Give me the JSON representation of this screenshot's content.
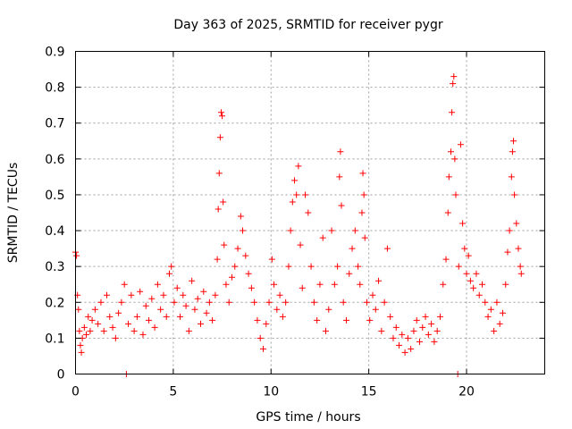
{
  "chart_data": {
    "type": "scatter",
    "title": "Day 363 of 2025, SRMTID for receiver pygr",
    "xlabel": "GPS time / hours",
    "ylabel": "SRMTID / TECUs",
    "xlim": [
      0,
      24
    ],
    "ylim": [
      0,
      0.9
    ],
    "xticks": [
      0,
      5,
      10,
      15,
      20
    ],
    "xtick_labels": [
      "0",
      "5",
      "10",
      "15",
      "20"
    ],
    "yticks": [
      0,
      0.1,
      0.2,
      0.3,
      0.4,
      0.5,
      0.6,
      0.7,
      0.8,
      0.9
    ],
    "ytick_labels": [
      "0",
      "0.1",
      "0.2",
      "0.3",
      "0.4",
      "0.5",
      "0.6",
      "0.7",
      "0.8",
      "0.9"
    ],
    "grid": true,
    "marker": "+",
    "colors": {
      "series": "#ff0000",
      "grid": "#a0a0a0",
      "axis": "#000000"
    },
    "series": [
      {
        "name": "SRMTID",
        "points": [
          [
            0.0,
            0.34
          ],
          [
            0.05,
            0.33
          ],
          [
            0.1,
            0.22
          ],
          [
            0.15,
            0.18
          ],
          [
            0.2,
            0.12
          ],
          [
            0.25,
            0.08
          ],
          [
            0.3,
            0.06
          ],
          [
            0.35,
            0.1
          ],
          [
            0.45,
            0.13
          ],
          [
            0.55,
            0.11
          ],
          [
            0.65,
            0.16
          ],
          [
            0.75,
            0.12
          ],
          [
            0.85,
            0.15
          ],
          [
            1.0,
            0.18
          ],
          [
            1.15,
            0.14
          ],
          [
            1.3,
            0.2
          ],
          [
            1.45,
            0.12
          ],
          [
            1.6,
            0.22
          ],
          [
            1.75,
            0.16
          ],
          [
            1.9,
            0.13
          ],
          [
            2.05,
            0.1
          ],
          [
            2.2,
            0.17
          ],
          [
            2.35,
            0.2
          ],
          [
            2.5,
            0.25
          ],
          [
            2.6,
            0.0
          ],
          [
            2.7,
            0.14
          ],
          [
            2.85,
            0.22
          ],
          [
            3.0,
            0.12
          ],
          [
            3.15,
            0.16
          ],
          [
            3.3,
            0.23
          ],
          [
            3.45,
            0.11
          ],
          [
            3.6,
            0.19
          ],
          [
            3.75,
            0.15
          ],
          [
            3.9,
            0.21
          ],
          [
            4.05,
            0.13
          ],
          [
            4.2,
            0.25
          ],
          [
            4.35,
            0.18
          ],
          [
            4.5,
            0.22
          ],
          [
            4.65,
            0.16
          ],
          [
            4.8,
            0.28
          ],
          [
            4.9,
            0.3
          ],
          [
            5.05,
            0.2
          ],
          [
            5.2,
            0.24
          ],
          [
            5.35,
            0.16
          ],
          [
            5.5,
            0.22
          ],
          [
            5.65,
            0.19
          ],
          [
            5.8,
            0.12
          ],
          [
            5.95,
            0.26
          ],
          [
            6.1,
            0.18
          ],
          [
            6.25,
            0.21
          ],
          [
            6.4,
            0.14
          ],
          [
            6.55,
            0.23
          ],
          [
            6.7,
            0.17
          ],
          [
            6.85,
            0.2
          ],
          [
            7.0,
            0.15
          ],
          [
            7.15,
            0.22
          ],
          [
            7.25,
            0.32
          ],
          [
            7.3,
            0.46
          ],
          [
            7.35,
            0.56
          ],
          [
            7.4,
            0.66
          ],
          [
            7.45,
            0.73
          ],
          [
            7.5,
            0.72
          ],
          [
            7.55,
            0.48
          ],
          [
            7.6,
            0.36
          ],
          [
            7.7,
            0.25
          ],
          [
            7.85,
            0.2
          ],
          [
            8.0,
            0.27
          ],
          [
            8.15,
            0.3
          ],
          [
            8.3,
            0.35
          ],
          [
            8.45,
            0.44
          ],
          [
            8.55,
            0.4
          ],
          [
            8.7,
            0.33
          ],
          [
            8.85,
            0.28
          ],
          [
            9.0,
            0.24
          ],
          [
            9.15,
            0.2
          ],
          [
            9.3,
            0.15
          ],
          [
            9.45,
            0.1
          ],
          [
            9.6,
            0.07
          ],
          [
            9.75,
            0.14
          ],
          [
            9.9,
            0.2
          ],
          [
            10.05,
            0.32
          ],
          [
            10.15,
            0.25
          ],
          [
            10.3,
            0.18
          ],
          [
            10.45,
            0.22
          ],
          [
            10.6,
            0.16
          ],
          [
            10.75,
            0.2
          ],
          [
            10.9,
            0.3
          ],
          [
            11.0,
            0.4
          ],
          [
            11.1,
            0.48
          ],
          [
            11.2,
            0.54
          ],
          [
            11.3,
            0.5
          ],
          [
            11.4,
            0.58
          ],
          [
            11.5,
            0.36
          ],
          [
            11.6,
            0.24
          ],
          [
            11.75,
            0.5
          ],
          [
            11.9,
            0.45
          ],
          [
            12.05,
            0.3
          ],
          [
            12.2,
            0.2
          ],
          [
            12.35,
            0.15
          ],
          [
            12.5,
            0.25
          ],
          [
            12.65,
            0.38
          ],
          [
            12.8,
            0.12
          ],
          [
            12.95,
            0.18
          ],
          [
            13.1,
            0.4
          ],
          [
            13.25,
            0.25
          ],
          [
            13.4,
            0.3
          ],
          [
            13.5,
            0.55
          ],
          [
            13.55,
            0.62
          ],
          [
            13.6,
            0.47
          ],
          [
            13.7,
            0.2
          ],
          [
            13.85,
            0.15
          ],
          [
            14.0,
            0.28
          ],
          [
            14.15,
            0.35
          ],
          [
            14.3,
            0.4
          ],
          [
            14.45,
            0.3
          ],
          [
            14.55,
            0.25
          ],
          [
            14.65,
            0.45
          ],
          [
            14.7,
            0.56
          ],
          [
            14.75,
            0.5
          ],
          [
            14.8,
            0.38
          ],
          [
            14.9,
            0.2
          ],
          [
            15.05,
            0.15
          ],
          [
            15.2,
            0.22
          ],
          [
            15.35,
            0.18
          ],
          [
            15.5,
            0.26
          ],
          [
            15.65,
            0.12
          ],
          [
            15.8,
            0.2
          ],
          [
            15.95,
            0.35
          ],
          [
            16.1,
            0.16
          ],
          [
            16.25,
            0.1
          ],
          [
            16.4,
            0.13
          ],
          [
            16.55,
            0.08
          ],
          [
            16.7,
            0.11
          ],
          [
            16.85,
            0.06
          ],
          [
            17.0,
            0.1
          ],
          [
            17.15,
            0.07
          ],
          [
            17.3,
            0.12
          ],
          [
            17.45,
            0.15
          ],
          [
            17.6,
            0.09
          ],
          [
            17.75,
            0.13
          ],
          [
            17.9,
            0.16
          ],
          [
            18.05,
            0.11
          ],
          [
            18.2,
            0.14
          ],
          [
            18.35,
            0.09
          ],
          [
            18.5,
            0.12
          ],
          [
            18.65,
            0.16
          ],
          [
            18.8,
            0.25
          ],
          [
            18.95,
            0.32
          ],
          [
            19.05,
            0.45
          ],
          [
            19.1,
            0.55
          ],
          [
            19.2,
            0.62
          ],
          [
            19.25,
            0.73
          ],
          [
            19.3,
            0.81
          ],
          [
            19.35,
            0.83
          ],
          [
            19.4,
            0.6
          ],
          [
            19.45,
            0.5
          ],
          [
            19.55,
            0.0
          ],
          [
            19.6,
            0.3
          ],
          [
            19.7,
            0.64
          ],
          [
            19.8,
            0.42
          ],
          [
            19.9,
            0.35
          ],
          [
            20.0,
            0.28
          ],
          [
            20.1,
            0.33
          ],
          [
            20.2,
            0.26
          ],
          [
            20.35,
            0.24
          ],
          [
            20.5,
            0.28
          ],
          [
            20.65,
            0.22
          ],
          [
            20.8,
            0.25
          ],
          [
            20.95,
            0.2
          ],
          [
            21.1,
            0.16
          ],
          [
            21.25,
            0.18
          ],
          [
            21.4,
            0.12
          ],
          [
            21.55,
            0.2
          ],
          [
            21.7,
            0.14
          ],
          [
            21.85,
            0.17
          ],
          [
            22.0,
            0.25
          ],
          [
            22.1,
            0.34
          ],
          [
            22.2,
            0.4
          ],
          [
            22.3,
            0.55
          ],
          [
            22.35,
            0.62
          ],
          [
            22.4,
            0.65
          ],
          [
            22.45,
            0.5
          ],
          [
            22.55,
            0.42
          ],
          [
            22.65,
            0.35
          ],
          [
            22.75,
            0.3
          ],
          [
            22.8,
            0.28
          ]
        ]
      }
    ]
  }
}
